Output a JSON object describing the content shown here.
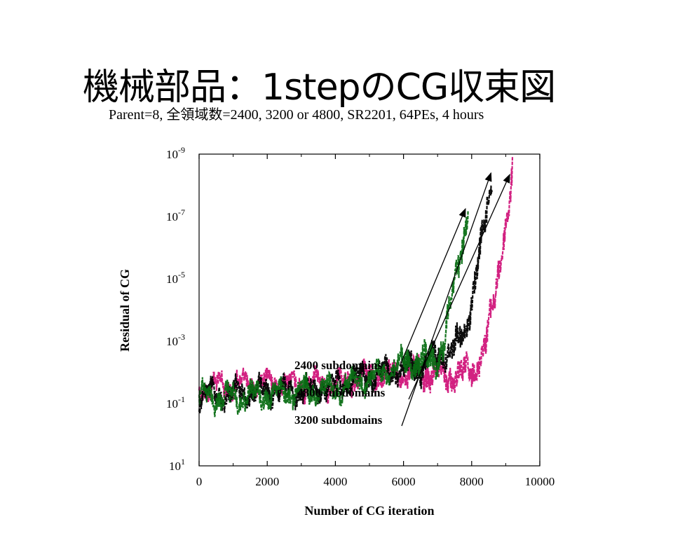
{
  "title": "機械部品：1stepのCG収束図",
  "subtitle": "Parent=8, 全領域数=2400, 3200 or 4800, SR2201, 64PEs, 4 hours",
  "colors": {
    "c2400": "#0a6e14",
    "c3200": "#000000",
    "c4800": "#d0157a",
    "axes": "#000000"
  },
  "chart_data": {
    "type": "line",
    "xlabel": "Number of CG iteration",
    "ylabel": "Residual of CG",
    "xlim": [
      0,
      10000
    ],
    "ylim_exp": [
      -9,
      1
    ],
    "yscale": "log",
    "x_ticks": [
      0,
      2000,
      4000,
      6000,
      8000,
      10000
    ],
    "x_tick_labels": [
      "0",
      "2000",
      "4000",
      "6000",
      "8000",
      "10000"
    ],
    "y_tick_exponents": [
      1,
      -1,
      -3,
      -5,
      -7,
      -9
    ],
    "y_tick_base": "10",
    "series": [
      {
        "name": "2400 subdomains",
        "color_key": "c2400",
        "points": [
          [
            0,
            -1.2
          ],
          [
            1000,
            -1.2
          ],
          [
            2000,
            -1.3
          ],
          [
            3000,
            -1.4
          ],
          [
            4000,
            -1.5
          ],
          [
            5000,
            -1.8
          ],
          [
            5600,
            -2.1
          ],
          [
            6000,
            -2.3
          ],
          [
            6500,
            -2.3
          ],
          [
            7000,
            -2.5
          ],
          [
            7200,
            -3.0
          ],
          [
            7400,
            -4.3
          ],
          [
            7600,
            -5.5
          ],
          [
            7800,
            -6.5
          ],
          [
            7900,
            -7.2
          ]
        ]
      },
      {
        "name": "3200 subdomains",
        "color_key": "c3200",
        "points": [
          [
            0,
            -1.3
          ],
          [
            1000,
            -1.3
          ],
          [
            2000,
            -1.4
          ],
          [
            3000,
            -1.4
          ],
          [
            4000,
            -1.6
          ],
          [
            5000,
            -1.9
          ],
          [
            6000,
            -2.1
          ],
          [
            6500,
            -2.2
          ],
          [
            7000,
            -2.5
          ],
          [
            7500,
            -2.8
          ],
          [
            7800,
            -3.2
          ],
          [
            8000,
            -4.4
          ],
          [
            8200,
            -5.5
          ],
          [
            8400,
            -6.8
          ],
          [
            8500,
            -7.6
          ],
          [
            8600,
            -8.3
          ]
        ]
      },
      {
        "name": "4800 subdomains",
        "color_key": "c4800",
        "points": [
          [
            0,
            -1.5
          ],
          [
            1000,
            -1.6
          ],
          [
            2000,
            -1.7
          ],
          [
            3000,
            -1.6
          ],
          [
            4000,
            -1.6
          ],
          [
            5000,
            -1.9
          ],
          [
            6000,
            -2.0
          ],
          [
            7000,
            -1.9
          ],
          [
            7500,
            -1.9
          ],
          [
            8000,
            -2.0
          ],
          [
            8400,
            -2.8
          ],
          [
            8700,
            -4.6
          ],
          [
            8900,
            -6.2
          ],
          [
            9100,
            -7.2
          ],
          [
            9200,
            -8.3
          ]
        ]
      }
    ],
    "annotations": [
      {
        "text": "2400 subdomains",
        "series": "2400 subdomains",
        "target": [
          7900,
          -7.2
        ]
      },
      {
        "text": "4800 subdomains",
        "series": "4800 subdomains",
        "target": [
          9200,
          -8.3
        ]
      },
      {
        "text": "3200 subdomains",
        "series": "3200 subdomains",
        "target": [
          8650,
          -8.35
        ]
      }
    ]
  }
}
